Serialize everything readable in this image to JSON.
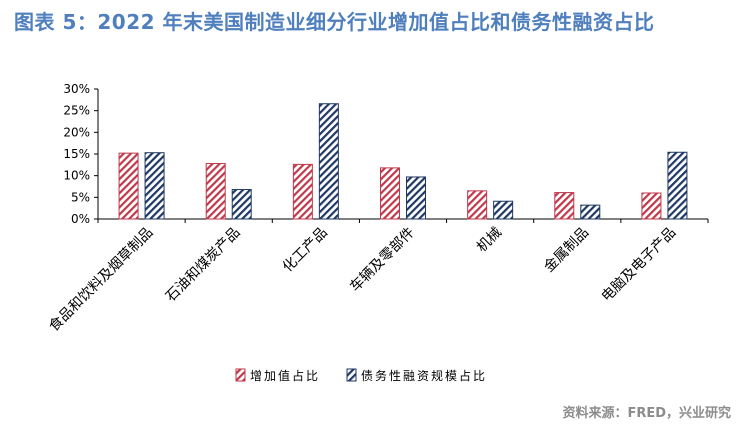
{
  "title": "图表 5：2022 年末美国制造业细分行业增加值占比和债务性融资占比",
  "source": "资料来源：FRED，兴业研究",
  "chart_data": {
    "type": "bar",
    "categories": [
      "食品和饮料及烟草制品",
      "石油和煤炭产品",
      "化工产品",
      "车辆及零部件",
      "机械",
      "金属制品",
      "电脑及电子产品"
    ],
    "series": [
      {
        "name": "增加值占比",
        "values": [
          15.2,
          12.8,
          12.6,
          11.8,
          6.5,
          6.1,
          6.0
        ],
        "color": "#c0394b",
        "pattern": "diagonal-hatch"
      },
      {
        "name": "债务性融资规模占比",
        "values": [
          15.3,
          6.8,
          26.6,
          9.7,
          4.1,
          3.2,
          15.4
        ],
        "color": "#1f3864",
        "pattern": "diagonal-hatch"
      }
    ],
    "ylim": [
      0,
      30
    ],
    "yticks": [
      "0%",
      "5%",
      "10%",
      "15%",
      "20%",
      "25%",
      "30%"
    ],
    "grid": false,
    "legend": "bottom"
  }
}
